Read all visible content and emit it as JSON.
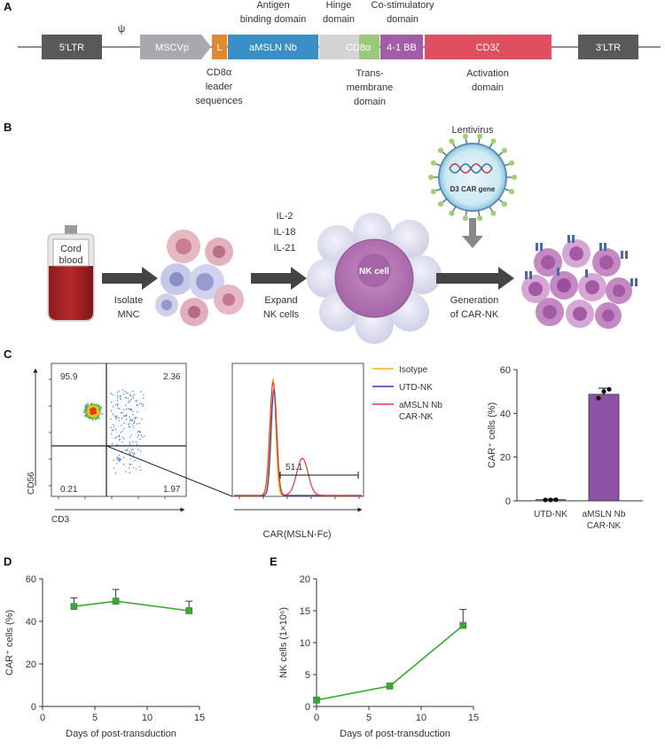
{
  "panels": {
    "a": "A",
    "b": "B",
    "c": "C",
    "d": "D",
    "e": "E"
  },
  "panel_a": {
    "segments": [
      "5'LTR",
      "MSCVp",
      "L",
      "aMSLN Nb",
      "CD8α",
      "4-1 BB",
      "CD3ζ",
      "3'LTR"
    ],
    "psi": "ψ",
    "top_annotations": {
      "antigen_line1": "Antigen",
      "antigen_line2": "binding domain",
      "hinge_line1": "Hinge",
      "hinge_line2": "domain",
      "costim_line1": "Co-stimulatory",
      "costim_line2": "domain"
    },
    "bottom_annotations": {
      "leader_line1": "CD8α",
      "leader_line2": "leader",
      "leader_line3": "sequences",
      "tm_line1": "Trans-",
      "tm_line2": "membrane",
      "tm_line3": "domain",
      "act_line1": "Activation",
      "act_line2": "domain"
    },
    "colors": {
      "ltr": "#58595b",
      "mscv": "#a7a9ac",
      "leader": "#e08a2e",
      "nb": "#3a8fc7",
      "hinge": "#d1d3d4",
      "tm": "#9cc87a",
      "costim": "#a25ca8",
      "cd3": "#e04f5f"
    }
  },
  "panel_b": {
    "cord_line1": "Cord",
    "cord_line2": "blood",
    "isolate_line1": "Isolate",
    "isolate_line2": "MNC",
    "cyt1": "IL-2",
    "cyt2": "IL-18",
    "cyt3": "IL-21",
    "expand_line1": "Expand",
    "expand_line2": "NK cells",
    "nk_label": "NK cell",
    "lentivirus": "Lentivirus",
    "virus_gene": "D3 CAR gene",
    "gen_line1": "Generation",
    "gen_line2": "of CAR-NK"
  },
  "panel_c": {
    "flow": {
      "x_label": "CD3",
      "y_label": "CD56",
      "q_ul": "95.9",
      "q_ur": "2.36",
      "q_ll": "0.21",
      "q_lr": "1.97"
    },
    "histogram": {
      "x_label": "CAR(MSLN-Fc)",
      "gate_value": "51.1",
      "legend": [
        "Isotype",
        "UTD-NK",
        "aMSLN Nb",
        "CAR-NK"
      ],
      "colors": {
        "isotype": "#f5b400",
        "utd": "#2b3fa8",
        "car": "#e8352e"
      }
    }
  },
  "chart_data": [
    {
      "type": "bar",
      "panel": "C",
      "categories": [
        "UTD-NK",
        "aMSLN Nb CAR-NK"
      ],
      "category_lines": [
        [
          "UTD-NK"
        ],
        [
          "aMSLN Nb",
          "CAR-NK"
        ]
      ],
      "values": [
        0.5,
        48.7
      ],
      "error": [
        0.3,
        2.8
      ],
      "points": [
        [
          0.4,
          0.4,
          0.5
        ],
        [
          47.0,
          50.0,
          51.0
        ]
      ],
      "ylabel": "CAR⁺ cells (%)",
      "ylim": [
        0,
        60
      ],
      "yticks": [
        0,
        20,
        40,
        60
      ],
      "bar_color": "#8e52a5"
    },
    {
      "type": "line",
      "panel": "D",
      "x": [
        3,
        7,
        14
      ],
      "y": [
        47.0,
        49.5,
        45.0
      ],
      "error": [
        4.0,
        5.5,
        4.5
      ],
      "xlabel": "Days of post-transduction",
      "ylabel": "CAR⁺ cells (%)",
      "xlim": [
        0,
        15
      ],
      "ylim": [
        0,
        60
      ],
      "xticks": [
        0,
        5,
        10,
        15
      ],
      "yticks": [
        0,
        20,
        40,
        60
      ],
      "color": "#39a935"
    },
    {
      "type": "line",
      "panel": "E",
      "x": [
        0,
        7,
        14
      ],
      "y": [
        1.0,
        3.2,
        12.7
      ],
      "error": [
        0.0,
        0.0,
        2.5
      ],
      "xlabel": "Days of post-transduction",
      "ylabel": "NK cells (1×10⁶)",
      "xlim": [
        0,
        15
      ],
      "ylim": [
        0,
        20
      ],
      "xticks": [
        0,
        5,
        10,
        15
      ],
      "yticks": [
        0,
        5,
        10,
        15,
        20
      ],
      "color": "#39a935"
    }
  ]
}
